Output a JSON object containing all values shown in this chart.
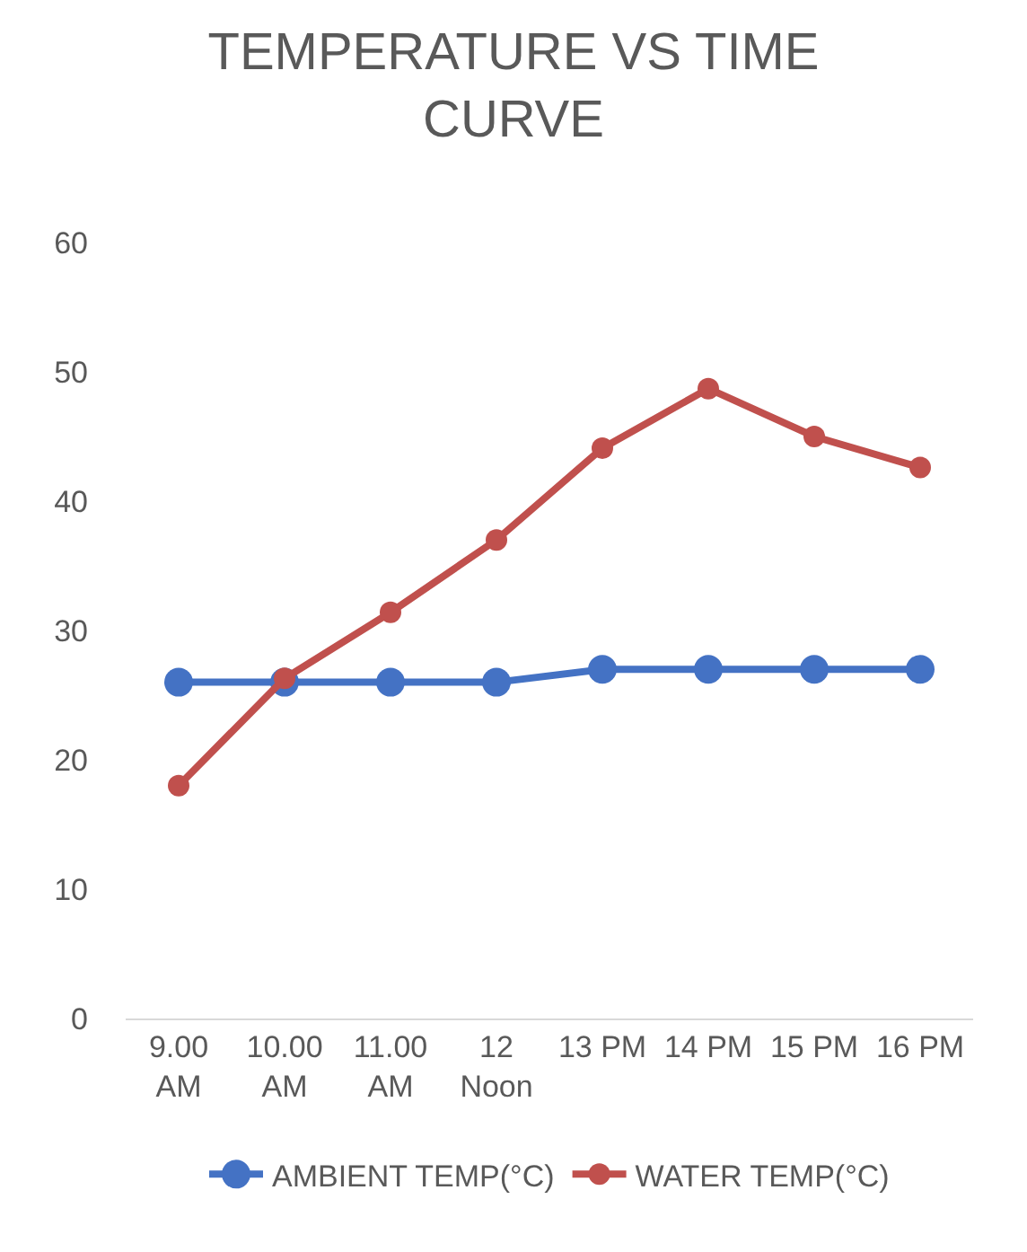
{
  "chart_data": {
    "type": "line",
    "title": "TEMPERATURE VS TIME CURVE",
    "categories": [
      "9.00 AM",
      "10.00 AM",
      "11.00 AM",
      "12 Noon",
      "13 PM",
      "14 PM",
      "15 PM",
      "16 PM"
    ],
    "series": [
      {
        "name": "AMBIENT TEMP(°C)",
        "color": "#4472c4",
        "values": [
          26,
          26,
          26,
          26,
          27,
          27,
          27,
          27
        ]
      },
      {
        "name": "WATER TEMP(°C)",
        "color": "#c0504d",
        "values": [
          18,
          26.3,
          31.4,
          37,
          44.1,
          48.7,
          45,
          42.6
        ]
      }
    ],
    "ylim": [
      0,
      60
    ],
    "yticks": [
      0,
      10,
      20,
      30,
      40,
      50,
      60
    ],
    "grid": false,
    "legend": "bottom",
    "marker": "circle",
    "line_style": "solid"
  }
}
